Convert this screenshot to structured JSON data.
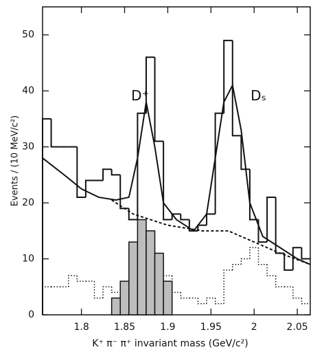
{
  "chart_data": {
    "type": "histogram",
    "xlabel": "K⁺ π⁻ π⁺ invariant mass  (GeV/c²)",
    "ylabel": "Events / (10 MeV/c²)",
    "annotations": [
      {
        "text": "D⁺",
        "x": 1.868,
        "y": 39
      },
      {
        "text": "Dₛ",
        "x": 2.005,
        "y": 39
      }
    ],
    "bins": [
      1.755,
      1.765,
      1.775,
      1.785,
      1.795,
      1.805,
      1.815,
      1.825,
      1.835,
      1.845,
      1.855,
      1.865,
      1.875,
      1.885,
      1.895,
      1.905,
      1.915,
      1.925,
      1.935,
      1.945,
      1.955,
      1.965,
      1.975,
      1.985,
      1.995,
      2.005,
      2.015,
      2.025,
      2.035,
      2.045,
      2.055,
      2.065
    ],
    "series": [
      {
        "color": "#111111",
        "style": "dotted",
        "values": [
          5,
          5,
          5,
          7,
          6,
          6,
          3,
          5,
          4,
          3,
          3,
          5,
          7,
          10,
          7,
          4,
          3,
          3,
          2,
          3,
          2,
          8,
          9,
          10,
          12,
          9,
          7,
          5,
          5,
          3,
          2
        ]
      },
      {
        "color": "#111111",
        "style": "filled",
        "fill": "#bdbdbd",
        "values": [
          null,
          null,
          null,
          null,
          null,
          null,
          null,
          null,
          3,
          6,
          13,
          17,
          15,
          11,
          6,
          null,
          null,
          null,
          null,
          null,
          null,
          null,
          null,
          null,
          null,
          null,
          null,
          null,
          null,
          null,
          null
        ]
      },
      {
        "color": "#111111",
        "style": "solid",
        "values": [
          35,
          30,
          30,
          30,
          21,
          24,
          24,
          26,
          25,
          19,
          17,
          36,
          46,
          31,
          17,
          18,
          17,
          15,
          16,
          18,
          36,
          49,
          32,
          26,
          17,
          13,
          21,
          11,
          8,
          12,
          10
        ]
      }
    ],
    "curves": [
      {
        "style": "solid",
        "x": [
          1.755,
          1.78,
          1.8,
          1.82,
          1.84,
          1.855,
          1.865,
          1.875,
          1.885,
          1.895,
          1.91,
          1.93,
          1.945,
          1.955,
          1.965,
          1.975,
          1.985,
          1.995,
          2.01,
          2.03,
          2.05,
          2.065
        ],
        "y": [
          28,
          25,
          22.5,
          21,
          20.5,
          21,
          28,
          38,
          30,
          20,
          17,
          15,
          18,
          28,
          38,
          41,
          33,
          20,
          14,
          12,
          10,
          9
        ]
      },
      {
        "style": "dashed",
        "x": [
          1.835,
          1.86,
          1.9,
          1.94,
          1.97,
          2.0,
          2.03,
          2.065
        ],
        "y": [
          20.5,
          18,
          16,
          15,
          15,
          13,
          11,
          9
        ]
      }
    ],
    "xlim": [
      1.755,
      2.065
    ],
    "ylim": [
      0,
      55
    ],
    "xticks": [
      1.8,
      1.85,
      1.9,
      1.95,
      2,
      2.05
    ],
    "yticks": [
      0,
      10,
      20,
      30,
      40,
      50
    ]
  }
}
